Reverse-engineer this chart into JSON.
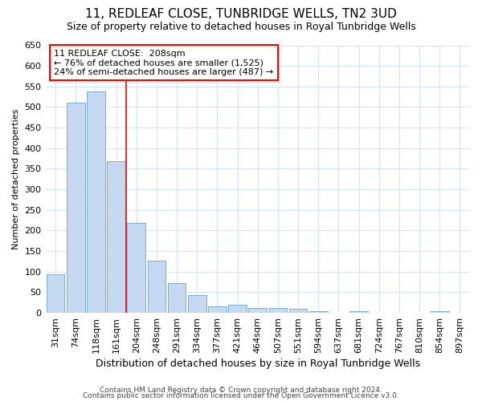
{
  "title": "11, REDLEAF CLOSE, TUNBRIDGE WELLS, TN2 3UD",
  "subtitle": "Size of property relative to detached houses in Royal Tunbridge Wells",
  "xlabel": "Distribution of detached houses by size in Royal Tunbridge Wells",
  "ylabel": "Number of detached properties",
  "categories": [
    "31sqm",
    "74sqm",
    "118sqm",
    "161sqm",
    "204sqm",
    "248sqm",
    "291sqm",
    "334sqm",
    "377sqm",
    "421sqm",
    "464sqm",
    "507sqm",
    "551sqm",
    "594sqm",
    "637sqm",
    "681sqm",
    "724sqm",
    "767sqm",
    "810sqm",
    "854sqm",
    "897sqm"
  ],
  "values": [
    93,
    510,
    537,
    369,
    219,
    127,
    73,
    43,
    16,
    20,
    12,
    12,
    9,
    5,
    0,
    5,
    0,
    1,
    0,
    5,
    1
  ],
  "bar_color": "#c5d9f0",
  "bar_edge_color": "#7aadd4",
  "vline_position": 3.5,
  "vline_color": "red",
  "ylim": [
    0,
    650
  ],
  "yticks": [
    0,
    50,
    100,
    150,
    200,
    250,
    300,
    350,
    400,
    450,
    500,
    550,
    600,
    650
  ],
  "annotation_line1": "11 REDLEAF CLOSE:  208sqm",
  "annotation_line2": "← 76% of detached houses are smaller (1,525)",
  "annotation_line3": "24% of semi-detached houses are larger (487) →",
  "annotation_box_color": "white",
  "annotation_box_edge": "red",
  "footer1": "Contains HM Land Registry data © Crown copyright and database right 2024.",
  "footer2": "Contains public sector information licensed under the Open Government Licence v3.0.",
  "background_color": "#ffffff",
  "grid_color": "#d0e4f7",
  "title_fontsize": 11,
  "subtitle_fontsize": 9,
  "ylabel_fontsize": 8,
  "xlabel_fontsize": 9,
  "tick_fontsize": 8,
  "annotation_fontsize": 8,
  "footer_fontsize": 6.5
}
